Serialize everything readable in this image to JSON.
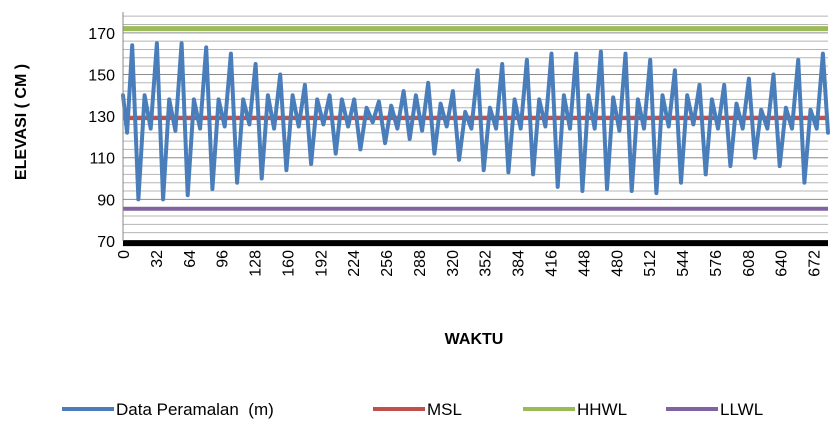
{
  "chart_data": {
    "type": "line",
    "xlabel": "WAKTU",
    "ylabel": "ELEVASI ( CM )",
    "xlim": [
      0,
      686
    ],
    "ylim": [
      70,
      180
    ],
    "y_ticks": [
      70,
      90,
      110,
      130,
      150,
      170
    ],
    "x_ticks": [
      0,
      32,
      64,
      96,
      128,
      160,
      192,
      224,
      256,
      288,
      320,
      352,
      384,
      416,
      448,
      480,
      512,
      544,
      576,
      608,
      640,
      672
    ],
    "grid": true,
    "legend_position": "bottom",
    "series": [
      {
        "name": "Data Peramalan  (m)",
        "color": "#4a7ebb",
        "x": [
          0,
          4,
          9,
          15,
          21,
          27,
          33,
          39,
          45,
          51,
          57,
          63,
          69,
          75,
          81,
          87,
          93,
          99,
          105,
          111,
          117,
          123,
          129,
          135,
          141,
          147,
          153,
          159,
          165,
          171,
          177,
          183,
          189,
          195,
          201,
          207,
          213,
          219,
          225,
          231,
          237,
          243,
          249,
          255,
          261,
          267,
          273,
          279,
          285,
          291,
          297,
          303,
          309,
          315,
          321,
          327,
          333,
          339,
          345,
          351,
          357,
          363,
          369,
          375,
          381,
          387,
          393,
          399,
          405,
          411,
          417,
          423,
          429,
          435,
          441,
          447,
          453,
          459,
          465,
          471,
          477,
          483,
          489,
          495,
          501,
          507,
          513,
          519,
          525,
          531,
          537,
          543,
          549,
          555,
          561,
          567,
          573,
          579,
          585,
          591,
          597,
          603,
          609,
          615,
          621,
          627,
          633,
          639,
          645,
          651,
          657,
          663,
          669,
          675,
          681,
          686
        ],
        "values": [
          140,
          122,
          164,
          90,
          140,
          124,
          165,
          90,
          138,
          123,
          165,
          92,
          138,
          124,
          163,
          95,
          138,
          125,
          160,
          98,
          138,
          126,
          155,
          100,
          140,
          124,
          150,
          104,
          140,
          125,
          145,
          107,
          138,
          126,
          140,
          112,
          138,
          125,
          138,
          114,
          134,
          127,
          137,
          117,
          135,
          124,
          142,
          119,
          140,
          123,
          146,
          112,
          136,
          125,
          142,
          109,
          132,
          124,
          152,
          104,
          134,
          124,
          155,
          103,
          138,
          124,
          157,
          102,
          138,
          125,
          160,
          96,
          140,
          124,
          160,
          94,
          140,
          124,
          161,
          95,
          139,
          123,
          160,
          94,
          138,
          124,
          157,
          93,
          140,
          125,
          152,
          98,
          140,
          126,
          145,
          102,
          138,
          124,
          145,
          106,
          136,
          124,
          148,
          110,
          133,
          124,
          150,
          106,
          134,
          124,
          157,
          98,
          133,
          124,
          160,
          122
        ],
        "width": 4
      },
      {
        "name": "MSL",
        "color": "#c0504d",
        "value": 129,
        "width": 4
      },
      {
        "name": "HHWL",
        "color": "#9bbb59",
        "value": 172,
        "width": 5
      },
      {
        "name": "LLWL",
        "color": "#8064a2",
        "value": 85.5,
        "width": 4
      },
      {
        "color": "#000000",
        "value": 69,
        "width": 6
      }
    ]
  }
}
